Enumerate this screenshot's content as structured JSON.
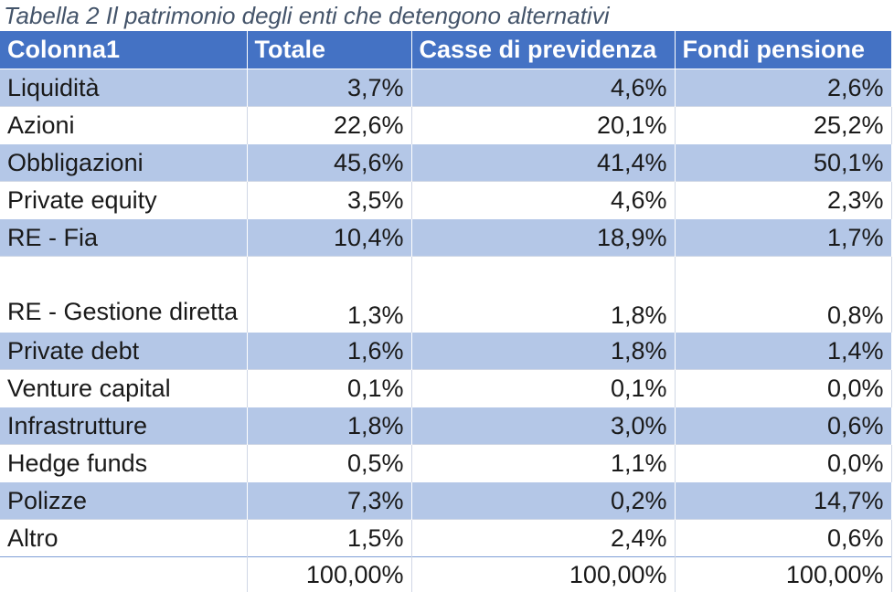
{
  "caption": "Tabella 2 Il patrimonio degli enti che detengono alternativi",
  "headers": [
    "Colonna1",
    "Totale",
    "Casse di previdenza",
    "Fondi pensione"
  ],
  "rows": [
    {
      "label": "Liquidità",
      "totale": "3,7%",
      "casse": "4,6%",
      "fondi": "2,6%"
    },
    {
      "label": "Azioni",
      "totale": "22,6%",
      "casse": "20,1%",
      "fondi": "25,2%"
    },
    {
      "label": "Obbligazioni",
      "totale": "45,6%",
      "casse": "41,4%",
      "fondi": "50,1%"
    },
    {
      "label": "Private equity",
      "totale": "3,5%",
      "casse": "4,6%",
      "fondi": "2,3%"
    },
    {
      "label": "RE - Fia",
      "totale": "10,4%",
      "casse": "18,9%",
      "fondi": "1,7%"
    },
    {
      "label": "RE - Gestione diretta",
      "totale": "1,3%",
      "casse": "1,8%",
      "fondi": "0,8%"
    },
    {
      "label": "Private debt",
      "totale": "1,6%",
      "casse": "1,8%",
      "fondi": "1,4%"
    },
    {
      "label": "Venture capital",
      "totale": "0,1%",
      "casse": "0,1%",
      "fondi": "0,0%"
    },
    {
      "label": "Infrastrutture",
      "totale": "1,8%",
      "casse": "3,0%",
      "fondi": "0,6%"
    },
    {
      "label": "Hedge funds",
      "totale": "0,5%",
      "casse": "1,1%",
      "fondi": "0,0%"
    },
    {
      "label": "Polizze",
      "totale": "7,3%",
      "casse": "0,2%",
      "fondi": "14,7%"
    },
    {
      "label": "Altro",
      "totale": "1,5%",
      "casse": "2,4%",
      "fondi": "0,6%"
    }
  ],
  "totals": {
    "label": "",
    "totale": "100,00%",
    "casse": "100,00%",
    "fondi": "100,00%"
  },
  "colors": {
    "header": "#4472c4",
    "band": "#b4c7e7",
    "caption": "#44546a"
  }
}
